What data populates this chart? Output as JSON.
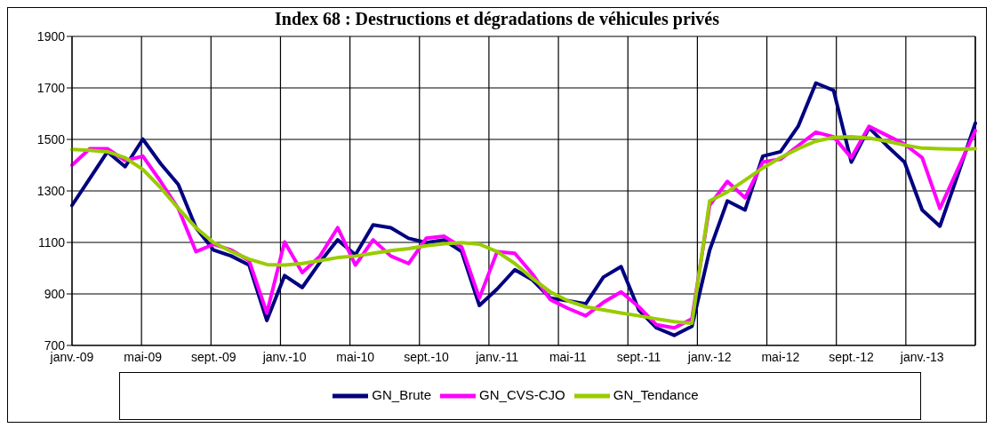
{
  "chart_data": {
    "type": "line",
    "title": "Index 68 : Destructions et dégradations de véhicules privés",
    "categories": [
      "janv.-09",
      null,
      null,
      null,
      "mai-09",
      null,
      null,
      null,
      "sept.-09",
      null,
      null,
      null,
      "janv.-10",
      null,
      null,
      null,
      "mai-10",
      null,
      null,
      null,
      "sept.-10",
      null,
      null,
      null,
      "janv.-11",
      null,
      null,
      null,
      "mai-11",
      null,
      null,
      null,
      "sept.-11",
      null,
      null,
      null,
      "janv.-12",
      null,
      null,
      null,
      "mai-12",
      null,
      null,
      null,
      "sept.-12",
      null,
      null,
      null,
      "janv.-13",
      null,
      null,
      null
    ],
    "series": [
      {
        "name": "GN_Brute",
        "color": "#000080",
        "values": [
          1244,
          1348,
          1452,
          1394,
          1501,
          1406,
          1325,
          1157,
          1070,
          1047,
          1012,
          797,
          971,
          925,
          1023,
          1110,
          1052,
          1168,
          1157,
          1116,
          1099,
          1110,
          1064,
          855,
          919,
          994,
          954,
          884,
          873,
          861,
          965,
          1006,
          838,
          768,
          739,
          774,
          1070,
          1261,
          1226,
          1435,
          1452,
          1551,
          1719,
          1690,
          1412,
          1545,
          1476,
          1412,
          1226,
          1163,
          1360,
          1563
        ]
      },
      {
        "name": "GN_CVS-CJO",
        "color": "#ff00ff",
        "values": [
          1400,
          1464,
          1464,
          1418,
          1435,
          1337,
          1232,
          1064,
          1093,
          1070,
          1029,
          826,
          1102,
          983,
          1047,
          1157,
          1012,
          1110,
          1047,
          1018,
          1116,
          1124,
          1082,
          884,
          1064,
          1058,
          977,
          878,
          844,
          815,
          867,
          908,
          850,
          780,
          768,
          803,
          1244,
          1337,
          1273,
          1412,
          1423,
          1476,
          1528,
          1510,
          1429,
          1551,
          1516,
          1482,
          1429,
          1232,
          1383,
          1534
        ]
      },
      {
        "name": "GN_Tendance",
        "color": "#99cc00",
        "values": [
          1461,
          1458,
          1452,
          1429,
          1383,
          1313,
          1232,
          1157,
          1099,
          1064,
          1035,
          1014,
          1012,
          1018,
          1029,
          1041,
          1047,
          1058,
          1068,
          1076,
          1087,
          1095,
          1099,
          1093,
          1064,
          1018,
          960,
          908,
          873,
          850,
          838,
          826,
          815,
          803,
          792,
          786,
          1261,
          1296,
          1342,
          1389,
          1429,
          1464,
          1493,
          1508,
          1510,
          1505,
          1493,
          1478,
          1466,
          1464,
          1462,
          1464
        ]
      }
    ],
    "ylim": [
      700,
      1900
    ],
    "yticks": [
      700,
      900,
      1100,
      1300,
      1500,
      1700,
      1900
    ],
    "grid": true,
    "legend": "bottom",
    "marker": "none",
    "line_style": "solid"
  }
}
